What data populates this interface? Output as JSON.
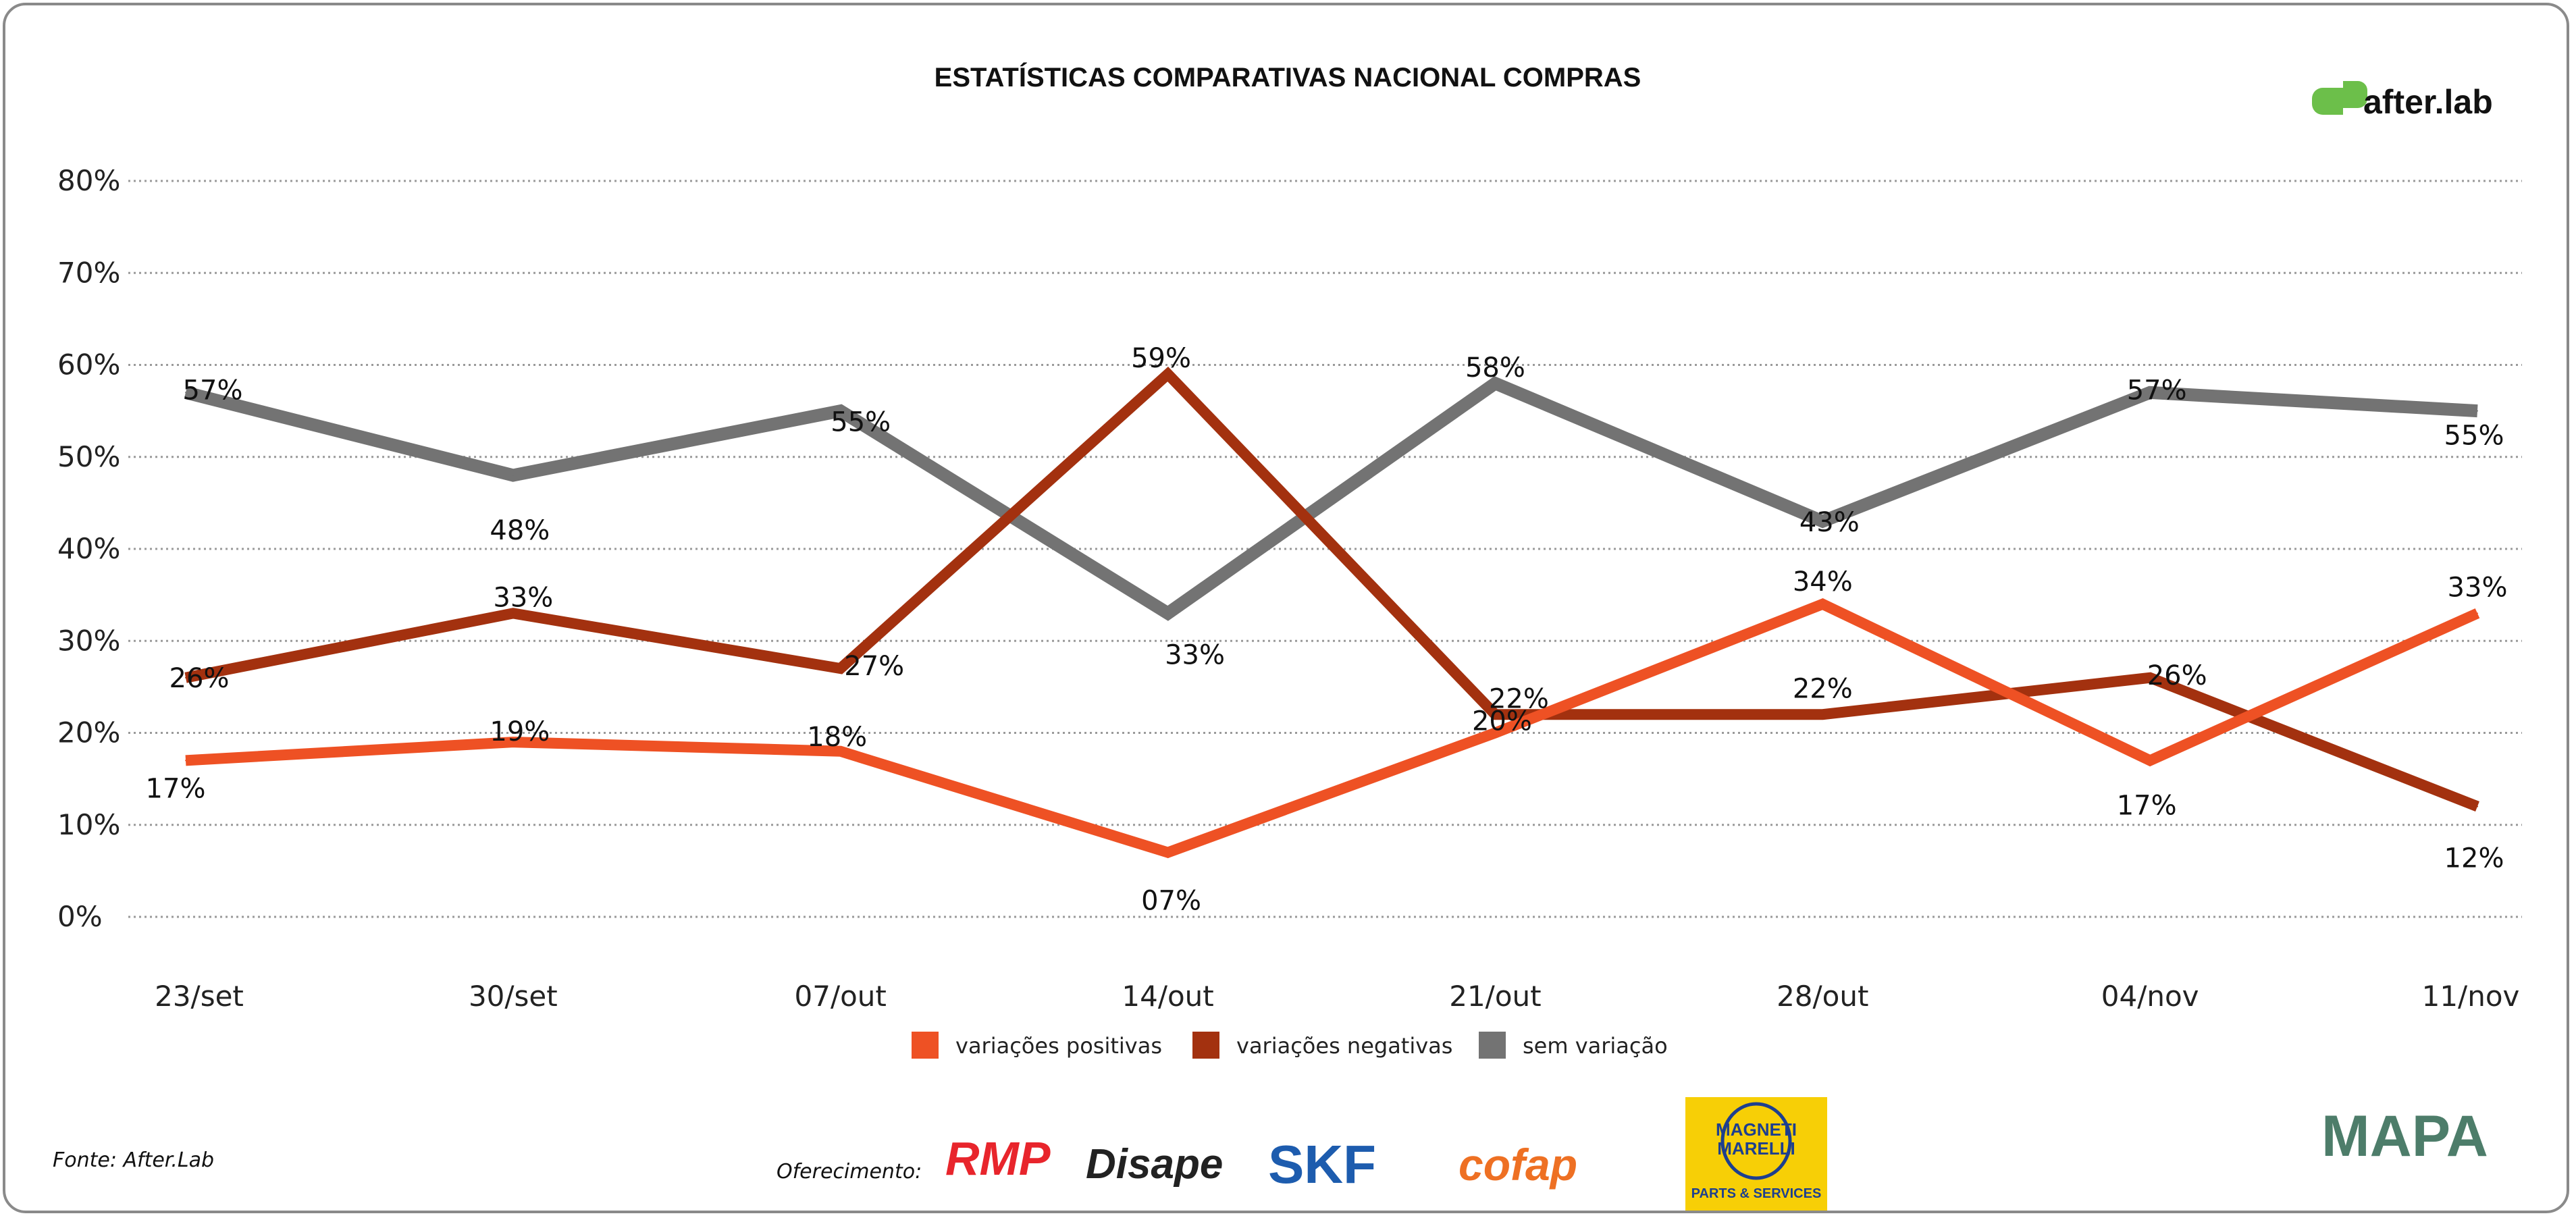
{
  "chart_data": {
    "type": "line",
    "title": "ESTATÍSTICAS COMPARATIVAS NACIONAL COMPRAS",
    "categories": [
      "23/set",
      "30/set",
      "07/out",
      "14/out",
      "21/out",
      "28/out",
      "04/nov",
      "11/nov"
    ],
    "yticks": [
      "0%",
      "10%",
      "20%",
      "30%",
      "40%",
      "50%",
      "60%",
      "70%",
      "80%"
    ],
    "ylim": [
      0,
      80
    ],
    "grid": true,
    "legend_position": "bottom",
    "series": [
      {
        "name": "variações positivas",
        "color": "#ee5124",
        "values": [
          17,
          19,
          18,
          7,
          20,
          34,
          17,
          33
        ],
        "labels": [
          "17%",
          "19%",
          "18%",
          "07%",
          "20%",
          "34%",
          "17%",
          "33%"
        ]
      },
      {
        "name": "variações negativas",
        "color": "#a3310f",
        "values": [
          26,
          33,
          27,
          59,
          22,
          22,
          26,
          12
        ],
        "labels": [
          "26%",
          "33%",
          "27%",
          "59%",
          "22%",
          "22%",
          "26%",
          "12%"
        ]
      },
      {
        "name": "sem variação",
        "color": "#737373",
        "values": [
          57,
          48,
          55,
          33,
          58,
          43,
          57,
          55
        ],
        "labels": [
          "57%",
          "48%",
          "55%",
          "33%",
          "58%",
          "43%",
          "57%",
          "55%"
        ]
      }
    ]
  },
  "brand": {
    "logo_text": "after.lab",
    "logo_color": "#6cbf4a"
  },
  "footer": {
    "source": "Fonte: After.Lab",
    "sponsor_label": "Oferecimento:",
    "sponsors": [
      "RMP",
      "Disape",
      "SKF",
      "cofap",
      "MAGNETI MARELLI PARTS & SERVICES"
    ],
    "partner": "MAPA"
  }
}
